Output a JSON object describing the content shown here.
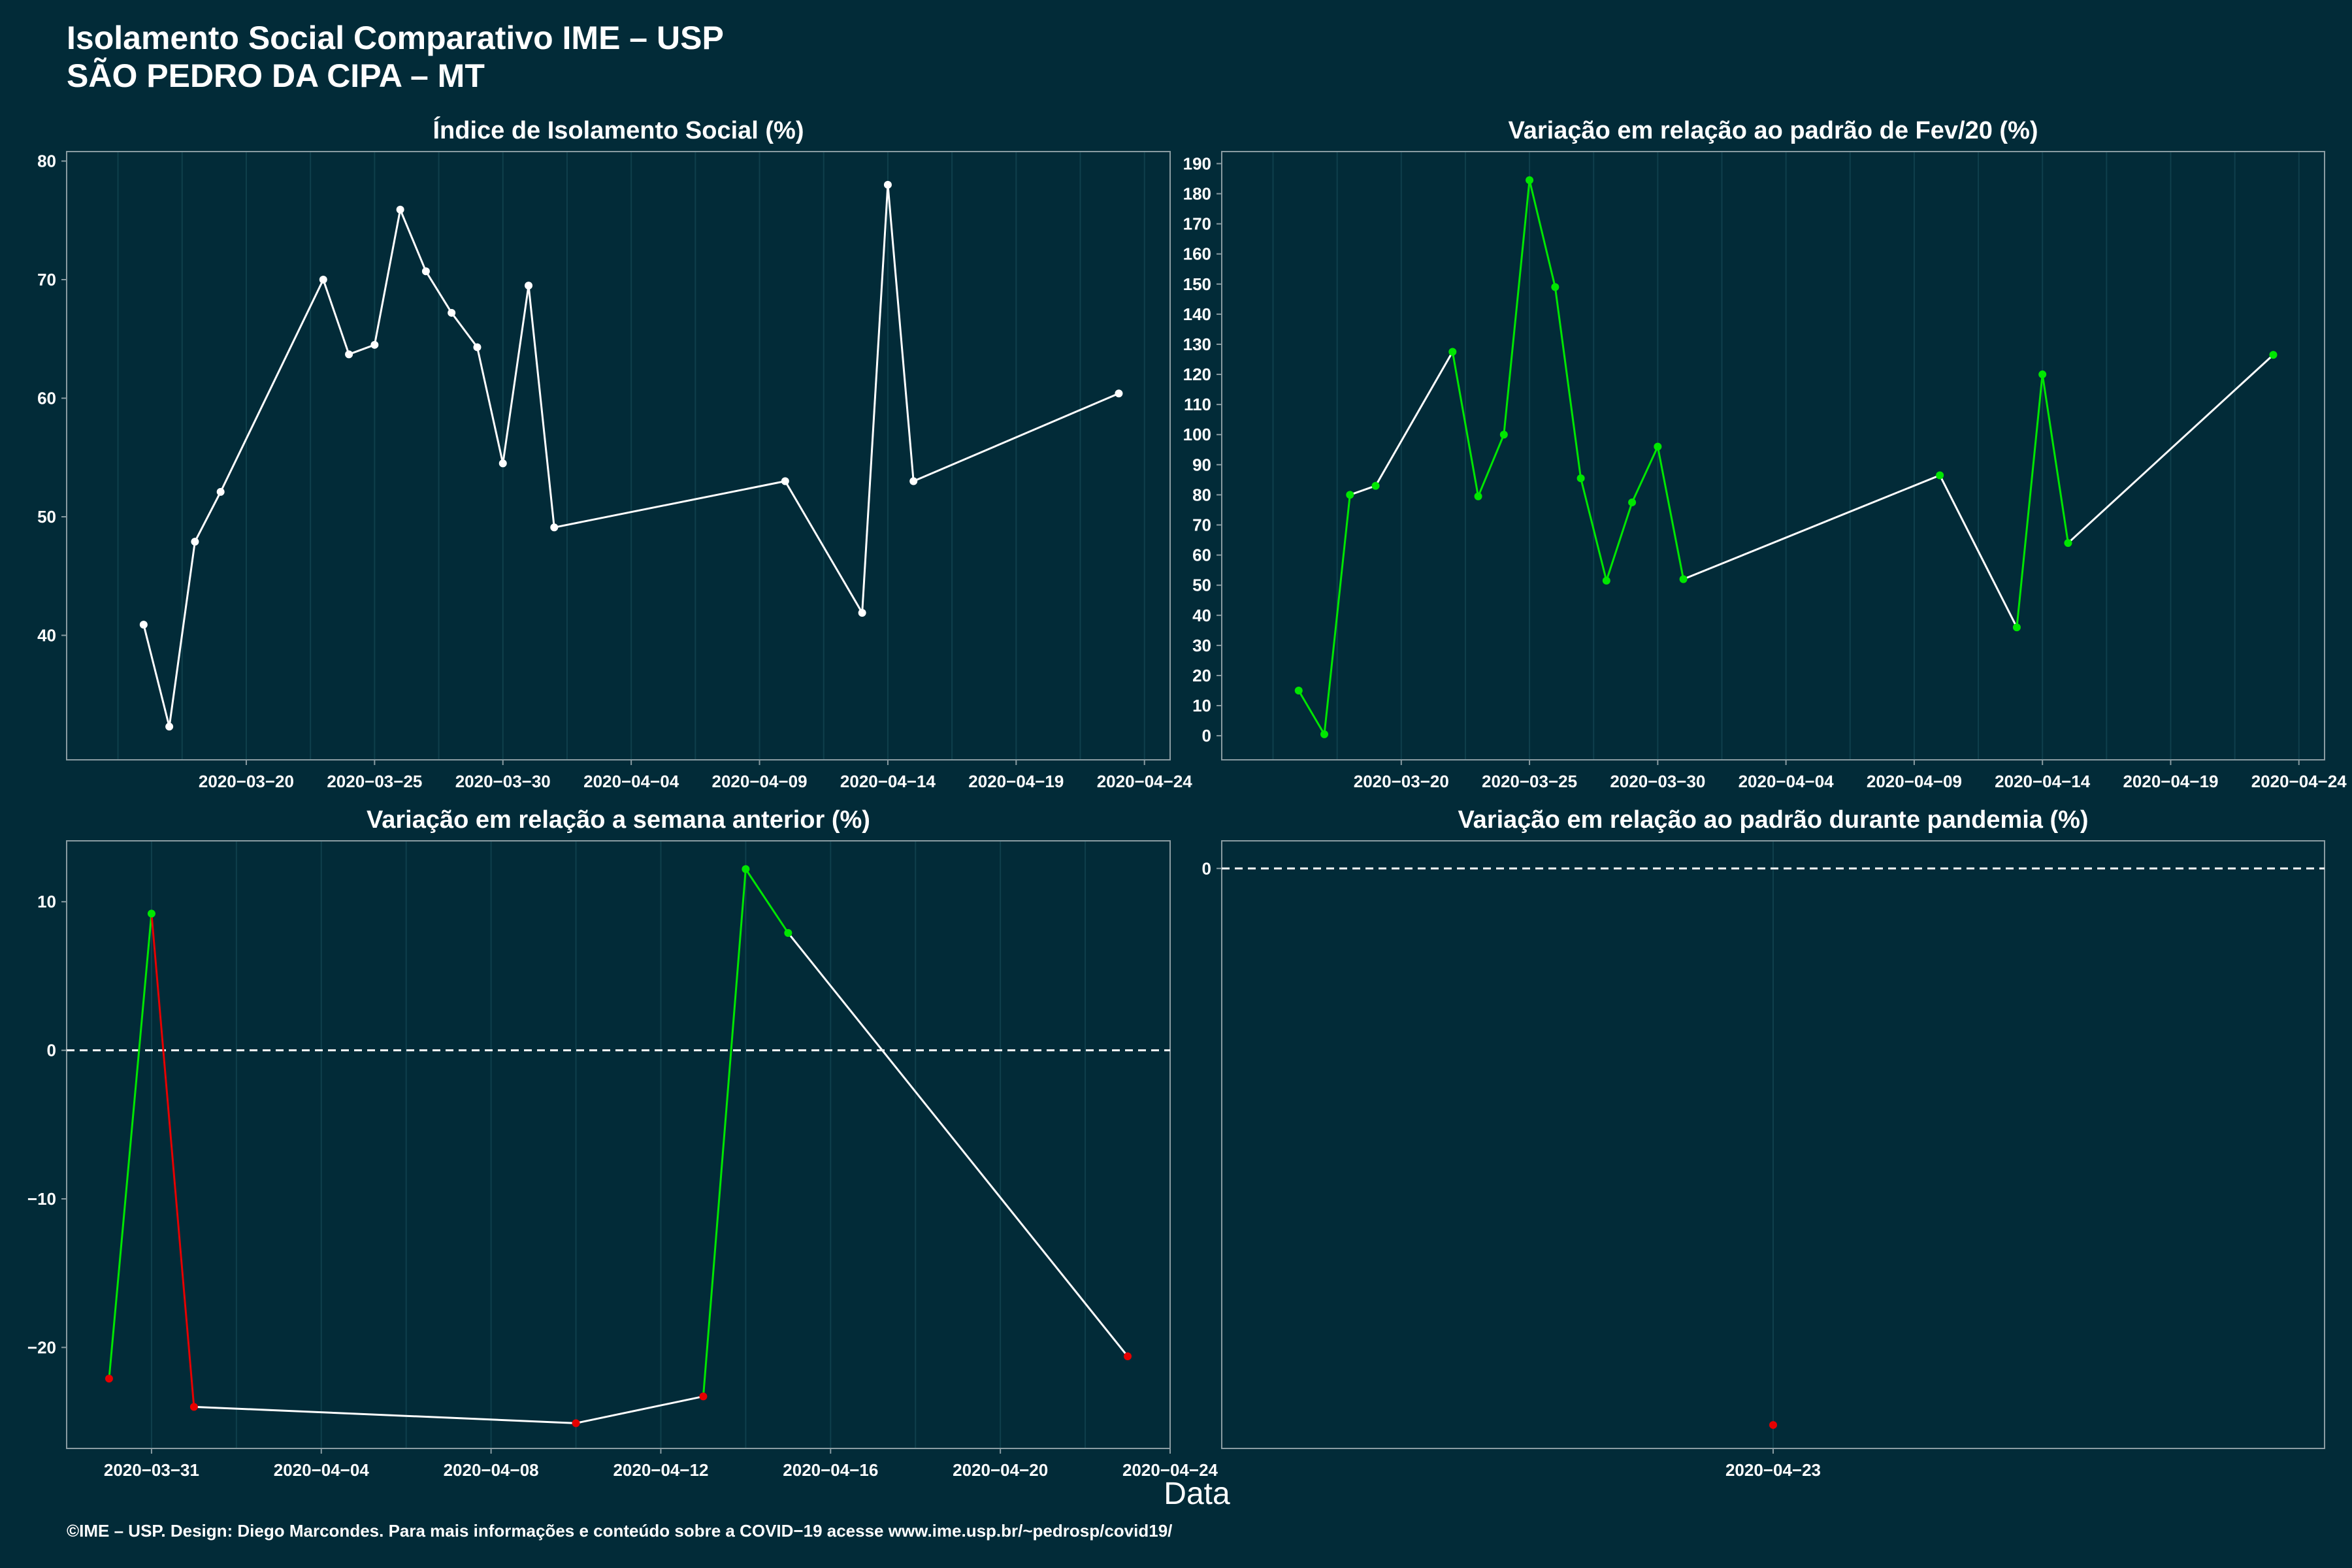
{
  "title_line1": "Isolamento Social Comparativo IME – USP",
  "title_line2": "SÃO PEDRO DA CIPA – MT",
  "xlabel": "Data",
  "footer": "©IME – USP. Design: Diego Marcondes. Para mais informações e conteúdo sobre a COVID−19 acesse www.ime.usp.br/~pedrosp/covid19/",
  "colors": {
    "background": "#022b38",
    "line": "#ffffff",
    "up": "#00e600",
    "down": "#e60000",
    "grid": "#0f3f4c",
    "frame": "#8a9ca2"
  },
  "chart_data": [
    {
      "type": "line",
      "title": "Índice de Isolamento Social (%)",
      "x_type": "date",
      "xlim": [
        "2020-03-13",
        "2020-04-25"
      ],
      "ylim": [
        29.5,
        80.8
      ],
      "x_ticks": [
        "2020-03-20",
        "2020-03-25",
        "2020-03-30",
        "2020-04-04",
        "2020-04-09",
        "2020-04-14",
        "2020-04-19",
        "2020-04-24"
      ],
      "y_ticks": [
        40,
        50,
        60,
        70,
        80
      ],
      "series": [
        {
          "x": [
            "2020-03-16",
            "2020-03-17",
            "2020-03-18",
            "2020-03-19",
            "2020-03-23",
            "2020-03-24",
            "2020-03-25",
            "2020-03-26",
            "2020-03-27",
            "2020-03-28",
            "2020-03-29",
            "2020-03-30",
            "2020-03-31",
            "2020-04-01",
            "2020-04-10",
            "2020-04-13",
            "2020-04-14",
            "2020-04-15",
            "2020-04-23"
          ],
          "y": [
            40.9,
            32.3,
            47.9,
            52.1,
            70.0,
            63.7,
            64.5,
            75.9,
            70.7,
            67.2,
            64.3,
            54.5,
            69.5,
            49.1,
            53.0,
            41.9,
            78.0,
            53.0,
            60.4
          ],
          "point_colors": [
            "line",
            "line",
            "line",
            "line",
            "line",
            "line",
            "line",
            "line",
            "line",
            "line",
            "line",
            "line",
            "line",
            "line",
            "line",
            "line",
            "line",
            "line",
            "line"
          ],
          "segment_colors": [
            "line",
            "line",
            "line",
            "line",
            "line",
            "line",
            "line",
            "line",
            "line",
            "line",
            "line",
            "line",
            "line",
            "line",
            "line",
            "line",
            "line",
            "line"
          ]
        }
      ]
    },
    {
      "type": "line",
      "title": "Variação em relação ao padrão de Fev/20 (%)",
      "x_type": "date",
      "xlim": [
        "2020-03-13",
        "2020-04-25"
      ],
      "ylim": [
        -8,
        194
      ],
      "x_ticks": [
        "2020-03-20",
        "2020-03-25",
        "2020-03-30",
        "2020-04-04",
        "2020-04-09",
        "2020-04-14",
        "2020-04-19",
        "2020-04-24"
      ],
      "y_ticks": [
        0,
        10,
        20,
        30,
        40,
        50,
        60,
        70,
        80,
        90,
        100,
        110,
        120,
        130,
        140,
        150,
        160,
        170,
        180,
        190
      ],
      "series": [
        {
          "x": [
            "2020-03-16",
            "2020-03-17",
            "2020-03-18",
            "2020-03-19",
            "2020-03-22",
            "2020-03-23",
            "2020-03-24",
            "2020-03-25",
            "2020-03-26",
            "2020-03-27",
            "2020-03-28",
            "2020-03-29",
            "2020-03-30",
            "2020-03-31",
            "2020-04-10",
            "2020-04-13",
            "2020-04-14",
            "2020-04-15",
            "2020-04-23"
          ],
          "y": [
            15,
            0.5,
            80,
            83,
            127.5,
            79.5,
            100,
            184.5,
            149,
            85.5,
            51.5,
            77.5,
            96,
            52,
            86.5,
            36,
            120,
            64,
            126.5
          ],
          "point_colors": [
            "up",
            "up",
            "up",
            "up",
            "up",
            "up",
            "up",
            "up",
            "up",
            "up",
            "up",
            "up",
            "up",
            "up",
            "up",
            "up",
            "up",
            "up",
            "up"
          ],
          "segment_colors": [
            "up",
            "up",
            "line",
            "line",
            "up",
            "up",
            "up",
            "up",
            "up",
            "up",
            "up",
            "up",
            "up",
            "line",
            "line",
            "up",
            "up",
            "line"
          ]
        }
      ]
    },
    {
      "type": "line",
      "title": "Variação em relação a semana anterior (%)",
      "x_type": "date",
      "xlim": [
        "2020-03-29",
        "2020-04-24"
      ],
      "ylim": [
        -26.8,
        14.1
      ],
      "x_ticks": [
        "2020-03-31",
        "2020-04-04",
        "2020-04-08",
        "2020-04-12",
        "2020-04-16",
        "2020-04-20",
        "2020-04-24"
      ],
      "y_ticks": [
        -20,
        -10,
        0,
        10
      ],
      "ref_line": 0,
      "series": [
        {
          "x": [
            "2020-03-30",
            "2020-03-31",
            "2020-04-01",
            "2020-04-10",
            "2020-04-13",
            "2020-04-14",
            "2020-04-15",
            "2020-04-23"
          ],
          "y": [
            -22.1,
            9.2,
            -24.0,
            -25.1,
            -23.3,
            12.2,
            7.9,
            -20.6
          ],
          "point_colors": [
            "down",
            "up",
            "down",
            "down",
            "down",
            "up",
            "up",
            "down"
          ],
          "segment_colors": [
            "up",
            "down",
            "line",
            "line",
            "up",
            "up",
            "line"
          ]
        }
      ]
    },
    {
      "type": "scatter",
      "title": "Variação em relação ao padrão durante pandemia (%)",
      "x_type": "date",
      "xlim": [
        "2020-04-22",
        "2020-04-24"
      ],
      "ylim": [
        -42,
        2
      ],
      "x_ticks": [
        "2020-04-23"
      ],
      "y_ticks": [
        0
      ],
      "ref_line": 0,
      "series": [
        {
          "x": [
            "2020-04-23"
          ],
          "y": [
            -40.3
          ],
          "point_colors": [
            "down"
          ],
          "segment_colors": []
        }
      ]
    }
  ]
}
